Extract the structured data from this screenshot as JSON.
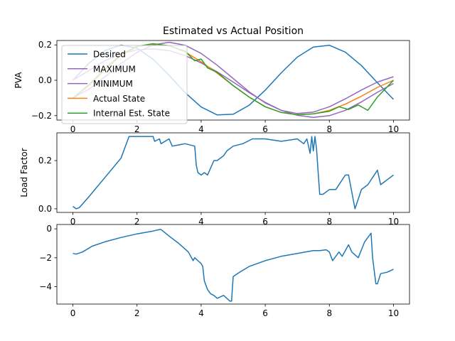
{
  "chart_data": [
    {
      "type": "line",
      "title": "Estimated vs Actual Position",
      "ylabel": "PVA",
      "xlabel": "",
      "xlim": [
        -0.5,
        10.5
      ],
      "ylim": [
        -0.225,
        0.225
      ],
      "xticks": [
        "0",
        "2",
        "4",
        "6",
        "8",
        "10"
      ],
      "yticks": [
        "−0.2",
        "0.0",
        "0.2"
      ],
      "legend": "top-left",
      "grid": false,
      "series": [
        {
          "name": "Desired",
          "color": "#1f77b4",
          "x": [
            0,
            0.5,
            1,
            1.5,
            2,
            2.5,
            3,
            3.5,
            4,
            4.5,
            5,
            5.5,
            6,
            6.5,
            7,
            7.5,
            8,
            8.5,
            9,
            9.5,
            10
          ],
          "y": [
            0.0,
            0.096,
            0.168,
            0.199,
            0.182,
            0.119,
            0.028,
            -0.07,
            -0.151,
            -0.196,
            -0.192,
            -0.141,
            -0.056,
            0.042,
            0.131,
            0.188,
            0.198,
            0.159,
            0.083,
            -0.014,
            -0.108
          ]
        },
        {
          "name": "MAXIMUM",
          "color": "#9467bd",
          "x": [
            0,
            0.5,
            1,
            1.5,
            2,
            2.5,
            3,
            3.5,
            4,
            4.5,
            5,
            5.5,
            6,
            6.5,
            7,
            7.5,
            8,
            8.5,
            9,
            9.5,
            10
          ],
          "y": [
            -0.1,
            -0.05,
            0.02,
            0.095,
            0.158,
            0.2,
            0.215,
            0.198,
            0.152,
            0.085,
            0.01,
            -0.065,
            -0.128,
            -0.17,
            -0.188,
            -0.18,
            -0.15,
            -0.105,
            -0.055,
            -0.01,
            0.02
          ]
        },
        {
          "name": "MINIMUM",
          "color": "#9467bd",
          "x": [
            0,
            0.5,
            1,
            1.5,
            2,
            2.5,
            3,
            3.5,
            4,
            4.5,
            5,
            5.5,
            6,
            6.5,
            7,
            7.5,
            8,
            8.5,
            9,
            9.5,
            10
          ],
          "y": [
            0.0,
            0.055,
            0.11,
            0.15,
            0.172,
            0.178,
            0.168,
            0.14,
            0.098,
            0.048,
            -0.01,
            -0.07,
            -0.125,
            -0.17,
            -0.198,
            -0.21,
            -0.2,
            -0.17,
            -0.122,
            -0.068,
            -0.018
          ]
        },
        {
          "name": "Actual State",
          "color": "#ff7f0e",
          "x": [
            0,
            0.5,
            1,
            1.5,
            2,
            2.5,
            3,
            3.5,
            4,
            4.5,
            5,
            5.5,
            6,
            6.5,
            7,
            7.5,
            8,
            8.5,
            9,
            9.5,
            10
          ],
          "y": [
            -0.1,
            -0.03,
            0.06,
            0.14,
            0.19,
            0.205,
            0.196,
            0.16,
            0.105,
            0.04,
            -0.03,
            -0.095,
            -0.15,
            -0.182,
            -0.195,
            -0.19,
            -0.17,
            -0.135,
            -0.09,
            -0.04,
            0.0
          ]
        },
        {
          "name": "Internal Est. State",
          "color": "#2ca02c",
          "x": [
            0,
            0.5,
            1,
            1.5,
            2,
            2.5,
            3,
            3.5,
            3.8,
            4,
            4.2,
            4.5,
            5,
            5.5,
            6,
            6.5,
            7,
            7.5,
            8,
            8.3,
            8.6,
            8.9,
            9.2,
            9.5,
            10
          ],
          "y": [
            -0.1,
            -0.025,
            0.065,
            0.145,
            0.192,
            0.207,
            0.195,
            0.165,
            0.11,
            0.12,
            0.07,
            0.045,
            -0.03,
            -0.095,
            -0.15,
            -0.182,
            -0.195,
            -0.19,
            -0.175,
            -0.15,
            -0.165,
            -0.14,
            -0.17,
            -0.095,
            0.0
          ]
        }
      ]
    },
    {
      "type": "line",
      "title": "",
      "ylabel": "Load Factor",
      "xlabel": "",
      "xlim": [
        -0.5,
        10.5
      ],
      "ylim": [
        -0.015,
        0.315
      ],
      "xticks": [
        "0",
        "2",
        "4",
        "6",
        "8",
        "10"
      ],
      "yticks": [
        "0.0",
        "0.2"
      ],
      "grid": false,
      "series": [
        {
          "color": "#1f77b4",
          "x": [
            0,
            0.1,
            0.2,
            0.5,
            1,
            1.5,
            1.75,
            2.5,
            2.55,
            2.7,
            2.75,
            3,
            3.1,
            3.5,
            3.8,
            3.85,
            3.9,
            4,
            4.1,
            4.2,
            4.4,
            4.5,
            4.7,
            4.8,
            5,
            5.3,
            5.6,
            6,
            6.5,
            7,
            7.2,
            7.3,
            7.4,
            7.45,
            7.5,
            7.55,
            7.6,
            7.7,
            7.8,
            8,
            8.2,
            8.5,
            8.6,
            8.8,
            8.85,
            9,
            9.2,
            9.3,
            9.5,
            9.6,
            9.8,
            10
          ],
          "y": [
            0.01,
            0.0,
            0.005,
            0.05,
            0.13,
            0.21,
            0.3,
            0.3,
            0.28,
            0.29,
            0.27,
            0.29,
            0.26,
            0.27,
            0.26,
            0.18,
            0.15,
            0.14,
            0.15,
            0.14,
            0.2,
            0.2,
            0.22,
            0.24,
            0.26,
            0.27,
            0.29,
            0.29,
            0.28,
            0.29,
            0.27,
            0.29,
            0.23,
            0.3,
            0.24,
            0.3,
            0.25,
            0.06,
            0.06,
            0.08,
            0.08,
            0.14,
            0.14,
            0.0,
            0.02,
            0.08,
            0.1,
            0.12,
            0.16,
            0.1,
            0.12,
            0.14
          ]
        }
      ]
    },
    {
      "type": "line",
      "title": "",
      "ylabel": "",
      "xlabel": "",
      "xlim": [
        -0.5,
        10.5
      ],
      "ylim": [
        -5.2,
        0.3
      ],
      "xticks": [
        "0",
        "2",
        "4",
        "6",
        "8",
        "10"
      ],
      "yticks": [
        "−4",
        "−2",
        "0"
      ],
      "grid": false,
      "series": [
        {
          "color": "#1f77b4",
          "x": [
            0,
            0.1,
            0.3,
            0.6,
            1,
            1.5,
            2,
            2.5,
            2.7,
            2.75,
            3,
            3.3,
            3.6,
            3.75,
            3.8,
            4,
            4.05,
            4.1,
            4.2,
            4.3,
            4.4,
            4.5,
            4.7,
            4.8,
            4.9,
            4.95,
            5.0,
            5.2,
            5.5,
            6,
            6.5,
            7,
            7.5,
            7.7,
            7.9,
            8.0,
            8.1,
            8.3,
            8.4,
            8.6,
            8.7,
            8.9,
            9.1,
            9.3,
            9.35,
            9.45,
            9.5,
            9.6,
            9.8,
            10
          ],
          "y": [
            -1.7,
            -1.75,
            -1.6,
            -1.2,
            -0.9,
            -0.6,
            -0.35,
            -0.15,
            -0.05,
            -0.05,
            -0.5,
            -1.0,
            -1.6,
            -2.2,
            -2.0,
            -2.4,
            -2.6,
            -3.6,
            -4.2,
            -4.5,
            -4.6,
            -4.8,
            -4.6,
            -4.8,
            -5.0,
            -5.0,
            -3.3,
            -3.0,
            -2.6,
            -2.2,
            -1.9,
            -1.7,
            -1.5,
            -1.5,
            -1.45,
            -1.6,
            -2.2,
            -1.6,
            -1.9,
            -1.1,
            -1.6,
            -2.0,
            -0.9,
            -0.3,
            -2.0,
            -3.8,
            -3.8,
            -3.1,
            -3.0,
            -2.8
          ]
        }
      ]
    }
  ]
}
